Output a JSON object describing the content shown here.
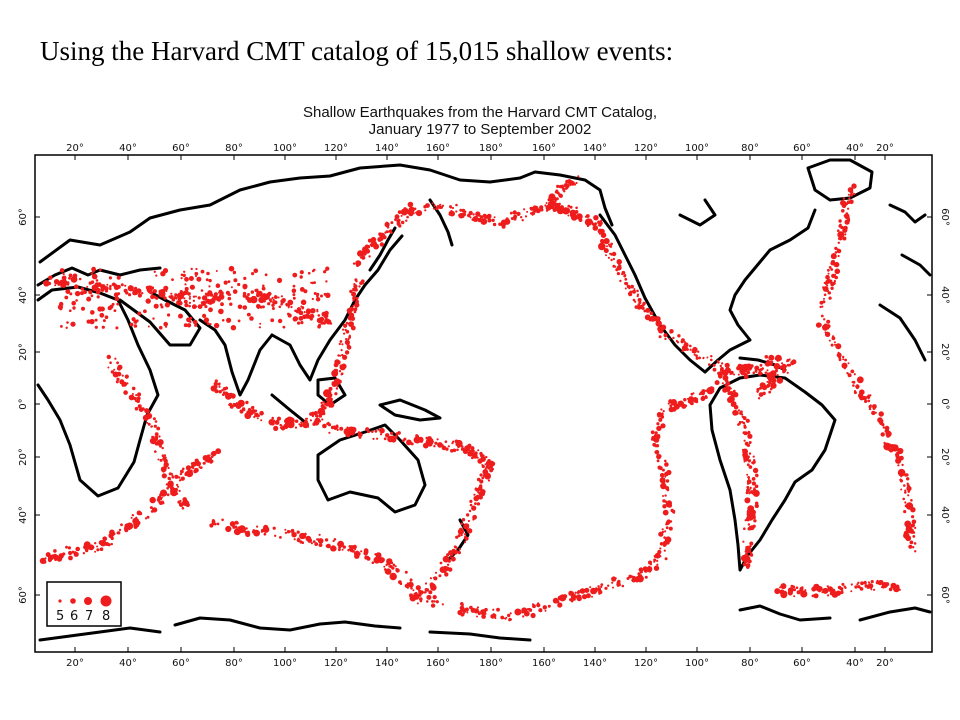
{
  "slide": {
    "title": "Using the Harvard CMT catalog of 15,015 shallow events:"
  },
  "map": {
    "title_line1": "Shallow Earthquakes from the Harvard CMT Catalog,",
    "title_line2": "January 1977 to September 2002",
    "lon_labels": [
      "20°",
      "40°",
      "60°",
      "80°",
      "100°",
      "120°",
      "140°",
      "160°",
      "180°",
      "160°",
      "140°",
      "120°",
      "100°",
      "80°",
      "60°",
      "40°",
      "20°"
    ],
    "lat_labels": [
      "60°",
      "40°",
      "20°",
      "0°",
      "20°",
      "40°",
      "60°"
    ],
    "legend": {
      "magnitudes": [
        "5",
        "6",
        "7",
        "8"
      ]
    },
    "colors": {
      "events": "#ee1c1c",
      "coastline": "#000000"
    }
  }
}
